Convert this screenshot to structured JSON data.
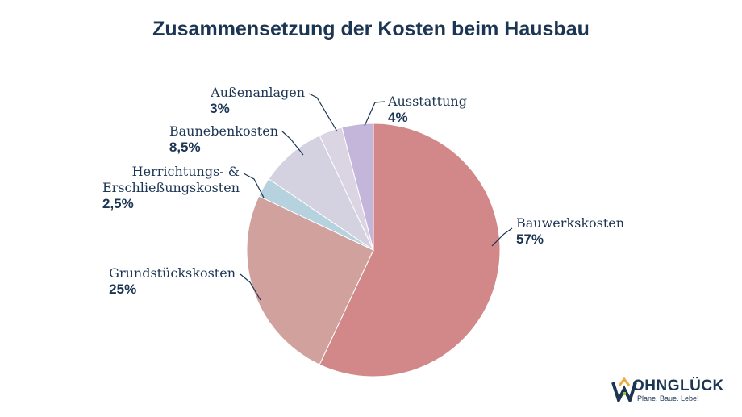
{
  "chart_data": {
    "type": "pie",
    "title": "Zusammensetzung der Kosten beim Hausbau",
    "slices": [
      {
        "name": "Bauwerkskosten",
        "value": 57,
        "label": "57%",
        "color": "#d28888"
      },
      {
        "name": "Grundstückskosten",
        "value": 25,
        "label": "25%",
        "color": "#d1a19e"
      },
      {
        "name": "Herrichtungs- & Erschließungskosten",
        "name_lines": [
          "Herrichtungs- &",
          "Erschließungskosten"
        ],
        "value": 2.5,
        "label": "2,5%",
        "color": "#b7d2df"
      },
      {
        "name": "Baunebenkosten",
        "value": 8.5,
        "label": "8,5%",
        "color": "#d4d2e0"
      },
      {
        "name": "Außenanlagen",
        "value": 3,
        "label": "3%",
        "color": "#dbd5e3"
      },
      {
        "name": "Ausstattung",
        "value": 4,
        "label": "4%",
        "color": "#c4b6da"
      }
    ],
    "start": "12 o'clock",
    "direction": "clockwise",
    "legend": "none"
  },
  "logo": {
    "wordmark": "OHNGLÜCK",
    "tagline": "Plane. Baue. Lebe!"
  }
}
